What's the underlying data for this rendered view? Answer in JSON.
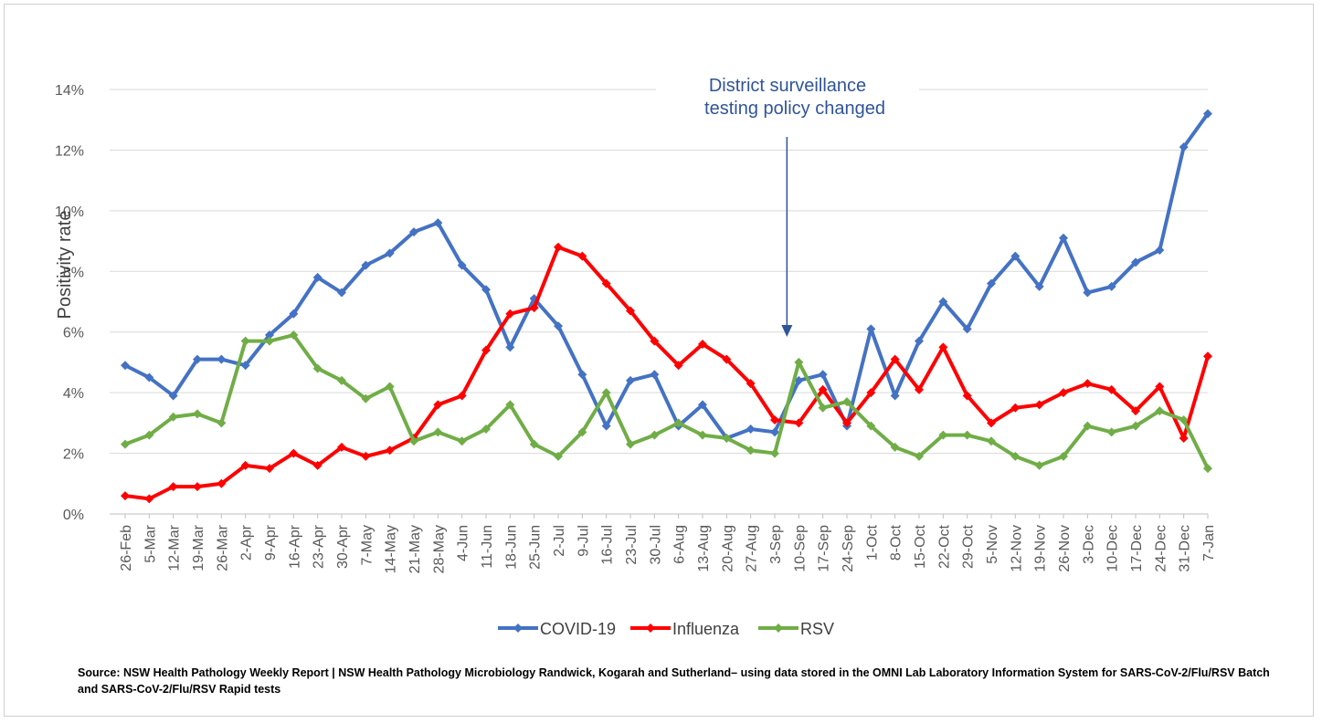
{
  "chart_data": {
    "type": "line",
    "title": "",
    "xlabel": "",
    "ylabel": "Positivity rate",
    "ylim": [
      0,
      14
    ],
    "y_ticks": [
      "0%",
      "2%",
      "4%",
      "6%",
      "8%",
      "10%",
      "12%",
      "14%"
    ],
    "y_tick_values": [
      0,
      2,
      4,
      6,
      8,
      10,
      12,
      14
    ],
    "grid": true,
    "legend_position": "bottom",
    "categories": [
      "26-Feb",
      "5-Mar",
      "12-Mar",
      "19-Mar",
      "26-Mar",
      "2-Apr",
      "9-Apr",
      "16-Apr",
      "23-Apr",
      "30-Apr",
      "7-May",
      "14-May",
      "21-May",
      "28-May",
      "4-Jun",
      "11-Jun",
      "18-Jun",
      "25-Jun",
      "2-Jul",
      "9-Jul",
      "16-Jul",
      "23-Jul",
      "30-Jul",
      "6-Aug",
      "13-Aug",
      "20-Aug",
      "27-Aug",
      "3-Sep",
      "10-Sep",
      "17-Sep",
      "24-Sep",
      "1-Oct",
      "8-Oct",
      "15-Oct",
      "22-Oct",
      "29-Oct",
      "5-Nov",
      "12-Nov",
      "19-Nov",
      "26-Nov",
      "3-Dec",
      "10-Dec",
      "17-Dec",
      "24-Dec",
      "31-Dec",
      "7-Jan"
    ],
    "series": [
      {
        "name": "COVID-19",
        "color": "#4472c4",
        "values": [
          4.9,
          4.5,
          3.9,
          5.1,
          5.1,
          4.9,
          5.9,
          6.6,
          7.8,
          7.3,
          8.2,
          8.6,
          9.3,
          9.6,
          8.2,
          7.4,
          5.5,
          7.1,
          6.2,
          4.6,
          2.9,
          4.4,
          4.6,
          2.9,
          3.6,
          2.5,
          2.8,
          2.7,
          4.4,
          4.6,
          2.9,
          6.1,
          3.9,
          5.7,
          7.0,
          6.1,
          7.6,
          8.5,
          7.5,
          9.1,
          7.3,
          7.5,
          8.3,
          8.7,
          12.1,
          13.2
        ]
      },
      {
        "name": "Influenza",
        "color": "#ff0000",
        "values": [
          0.6,
          0.5,
          0.9,
          0.9,
          1.0,
          1.6,
          1.5,
          2.0,
          1.6,
          2.2,
          1.9,
          2.1,
          2.5,
          3.6,
          3.9,
          5.4,
          6.6,
          6.8,
          8.8,
          8.5,
          7.6,
          6.7,
          5.7,
          4.9,
          5.6,
          5.1,
          4.3,
          3.1,
          3.0,
          4.1,
          3.0,
          4.0,
          5.1,
          4.1,
          5.5,
          3.9,
          3.0,
          3.5,
          3.6,
          4.0,
          4.3,
          4.1,
          3.4,
          4.2,
          2.5,
          5.2
        ]
      },
      {
        "name": "RSV",
        "color": "#70ad47",
        "values": [
          2.3,
          2.6,
          3.2,
          3.3,
          3.0,
          5.7,
          5.7,
          5.9,
          4.8,
          4.4,
          3.8,
          4.2,
          2.4,
          2.7,
          2.4,
          2.8,
          3.6,
          2.3,
          1.9,
          2.7,
          4.0,
          2.3,
          2.6,
          3.0,
          2.6,
          2.5,
          2.1,
          2.0,
          5.0,
          3.5,
          3.7,
          2.9,
          2.2,
          1.9,
          2.6,
          2.6,
          2.4,
          1.9,
          1.6,
          1.9,
          2.9,
          2.7,
          2.9,
          3.4,
          3.1,
          1.5
        ]
      }
    ],
    "annotation": {
      "line1": "District surveillance",
      "line2": "testing policy changed",
      "at_category": "10-Sep",
      "arrow_color": "#2f5597"
    },
    "source": "Source: NSW Health Pathology Weekly Report | NSW Health Pathology Microbiology Randwick, Kogarah and Sutherland–  using data stored in the OMNI Lab Laboratory Information System for SARS-CoV-2/Flu/RSV Batch and SARS-CoV-2/Flu/RSV Rapid tests"
  }
}
